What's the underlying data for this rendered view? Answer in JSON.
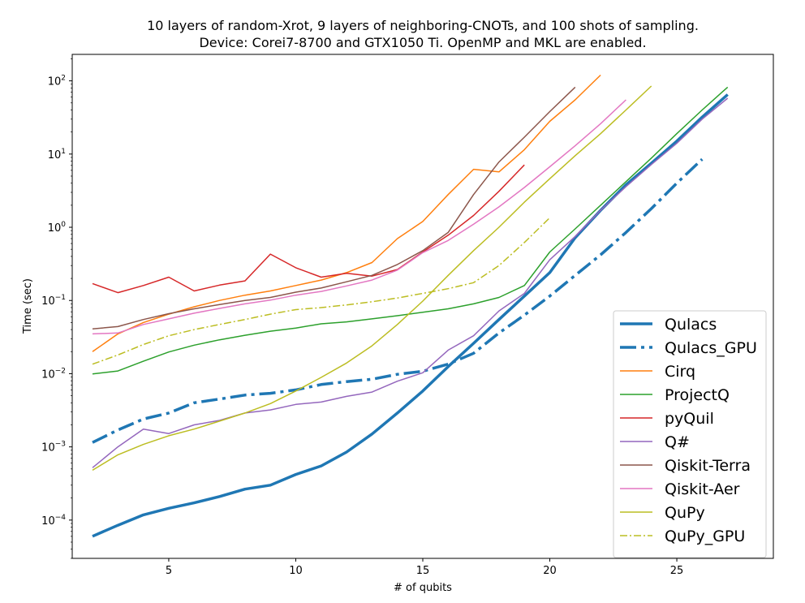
{
  "chart_data": {
    "type": "line",
    "title_lines": [
      "10 layers of random-Xrot, 9 layers of neighboring-CNOTs, and 100 shots of sampling.",
      "Device: Corei7-8700 and GTX1050 Ti. OpenMP and MKL are enabled."
    ],
    "xlabel": "# of qubits",
    "ylabel": "Time (sec)",
    "xlim": [
      1.2,
      28.8
    ],
    "ylim": [
      3e-05,
      230
    ],
    "yscale": "log",
    "xticks": [
      5,
      10,
      15,
      20,
      25
    ],
    "yticks": [
      {
        "value": 0.0001,
        "base": "10",
        "exp": "−4"
      },
      {
        "value": 0.001,
        "base": "10",
        "exp": "−3"
      },
      {
        "value": 0.01,
        "base": "10",
        "exp": "−2"
      },
      {
        "value": 0.1,
        "base": "10",
        "exp": "−1"
      },
      {
        "value": 1,
        "base": "10",
        "exp": "0"
      },
      {
        "value": 10,
        "base": "10",
        "exp": "1"
      },
      {
        "value": 100,
        "base": "10",
        "exp": "2"
      }
    ],
    "grid": false,
    "legend_position": "lower-right",
    "series": [
      {
        "name": "Qulacs",
        "color": "#1f77b4",
        "style": "solid-thick",
        "x": [
          2,
          3,
          4,
          5,
          6,
          7,
          8,
          9,
          10,
          11,
          12,
          13,
          14,
          15,
          16,
          17,
          18,
          19,
          20,
          21,
          22,
          23,
          24,
          25,
          26,
          27
        ],
        "y": [
          6e-05,
          8.5e-05,
          0.000118,
          0.000145,
          0.000172,
          0.00021,
          0.000265,
          0.0003,
          0.00042,
          0.00055,
          0.00085,
          0.0015,
          0.0029,
          0.0058,
          0.0125,
          0.026,
          0.055,
          0.115,
          0.24,
          0.72,
          1.7,
          3.8,
          7.5,
          15,
          32,
          65
        ]
      },
      {
        "name": "Qulacs_GPU",
        "color": "#1f77b4",
        "style": "dashdot-thick",
        "x": [
          2,
          3,
          4,
          5,
          6,
          7,
          8,
          9,
          10,
          11,
          12,
          13,
          14,
          15,
          16,
          17,
          18,
          19,
          20,
          21,
          22,
          23,
          24,
          25,
          26
        ],
        "y": [
          0.00115,
          0.0017,
          0.0024,
          0.0029,
          0.004,
          0.0045,
          0.0051,
          0.0054,
          0.006,
          0.0071,
          0.0078,
          0.0084,
          0.0098,
          0.0108,
          0.0135,
          0.019,
          0.036,
          0.063,
          0.115,
          0.22,
          0.42,
          0.85,
          1.8,
          4.0,
          8.5
        ]
      },
      {
        "name": "Cirq",
        "color": "#ff7f0e",
        "style": "solid",
        "x": [
          2,
          3,
          4,
          5,
          6,
          7,
          8,
          9,
          10,
          11,
          12,
          13,
          14,
          15,
          16,
          17,
          18,
          19,
          20,
          21,
          22
        ],
        "y": [
          0.02,
          0.035,
          0.05,
          0.065,
          0.082,
          0.1,
          0.118,
          0.135,
          0.16,
          0.19,
          0.24,
          0.33,
          0.7,
          1.2,
          2.8,
          6.2,
          5.7,
          11.5,
          28,
          55,
          120
        ]
      },
      {
        "name": "ProjectQ",
        "color": "#2ca02c",
        "style": "solid",
        "x": [
          2,
          3,
          4,
          5,
          6,
          7,
          8,
          9,
          10,
          11,
          12,
          13,
          14,
          15,
          16,
          17,
          18,
          19,
          20,
          21,
          22,
          23,
          24,
          25,
          26,
          27
        ],
        "y": [
          0.0099,
          0.0109,
          0.0148,
          0.0198,
          0.0245,
          0.029,
          0.0335,
          0.038,
          0.042,
          0.048,
          0.051,
          0.056,
          0.062,
          0.069,
          0.077,
          0.09,
          0.11,
          0.16,
          0.46,
          0.95,
          2.0,
          4.2,
          8.8,
          19,
          40,
          82
        ]
      },
      {
        "name": "pyQuil",
        "color": "#d62728",
        "style": "solid",
        "x": [
          2,
          3,
          4,
          5,
          6,
          7,
          8,
          9,
          10,
          11,
          12,
          13,
          14,
          15,
          16,
          17,
          18,
          19
        ],
        "y": [
          0.17,
          0.128,
          0.16,
          0.208,
          0.135,
          0.162,
          0.185,
          0.43,
          0.28,
          0.208,
          0.235,
          0.215,
          0.265,
          0.46,
          0.78,
          1.45,
          3.1,
          7.1
        ]
      },
      {
        "name": "Q#",
        "color": "#9467bd",
        "style": "solid",
        "x": [
          2,
          3,
          4,
          5,
          6,
          7,
          8,
          9,
          10,
          11,
          12,
          13,
          14,
          15,
          16,
          17,
          18,
          19,
          20,
          21,
          22,
          23,
          24,
          25,
          26,
          27
        ],
        "y": [
          0.00052,
          0.001,
          0.00175,
          0.00152,
          0.002,
          0.0023,
          0.0029,
          0.0032,
          0.0038,
          0.0041,
          0.0049,
          0.0056,
          0.0079,
          0.0103,
          0.021,
          0.033,
          0.072,
          0.125,
          0.36,
          0.75,
          1.7,
          3.6,
          7.2,
          14,
          30,
          58
        ]
      },
      {
        "name": "Qiskit-Terra",
        "color": "#8c564b",
        "style": "solid",
        "x": [
          2,
          3,
          4,
          5,
          6,
          7,
          8,
          9,
          10,
          11,
          12,
          13,
          14,
          15,
          16,
          17,
          18,
          19,
          20,
          21
        ],
        "y": [
          0.041,
          0.044,
          0.055,
          0.066,
          0.077,
          0.088,
          0.1,
          0.11,
          0.13,
          0.148,
          0.18,
          0.22,
          0.31,
          0.48,
          0.85,
          2.8,
          7.8,
          17,
          38,
          82
        ]
      },
      {
        "name": "Qiskit-Aer",
        "color": "#e377c2",
        "style": "solid",
        "x": [
          2,
          3,
          4,
          5,
          6,
          7,
          8,
          9,
          10,
          11,
          12,
          13,
          14,
          15,
          16,
          17,
          18,
          19,
          20,
          21,
          22,
          23
        ],
        "y": [
          0.035,
          0.036,
          0.047,
          0.056,
          0.067,
          0.078,
          0.09,
          0.101,
          0.118,
          0.133,
          0.158,
          0.19,
          0.26,
          0.45,
          0.66,
          1.1,
          1.9,
          3.5,
          6.7,
          13,
          26,
          55
        ]
      },
      {
        "name": "QuPy",
        "color": "#bcbd22",
        "style": "solid",
        "x": [
          2,
          3,
          4,
          5,
          6,
          7,
          8,
          9,
          10,
          11,
          12,
          13,
          14,
          15,
          16,
          17,
          18,
          19,
          20,
          21,
          22,
          23,
          24
        ],
        "y": [
          0.00048,
          0.00078,
          0.00108,
          0.00142,
          0.00175,
          0.00225,
          0.0029,
          0.0039,
          0.0058,
          0.0089,
          0.014,
          0.024,
          0.047,
          0.098,
          0.22,
          0.48,
          1.0,
          2.2,
          4.6,
          9.5,
          19,
          40,
          85
        ]
      },
      {
        "name": "QuPy_GPU",
        "color": "#bcbd22",
        "style": "dashdot",
        "x": [
          2,
          3,
          4,
          5,
          6,
          7,
          8,
          9,
          10,
          11,
          12,
          13,
          14,
          15,
          16,
          17,
          18,
          19,
          20
        ],
        "y": [
          0.0135,
          0.018,
          0.025,
          0.033,
          0.04,
          0.047,
          0.055,
          0.065,
          0.075,
          0.08,
          0.087,
          0.096,
          0.108,
          0.125,
          0.145,
          0.175,
          0.3,
          0.62,
          1.35
        ]
      }
    ]
  }
}
